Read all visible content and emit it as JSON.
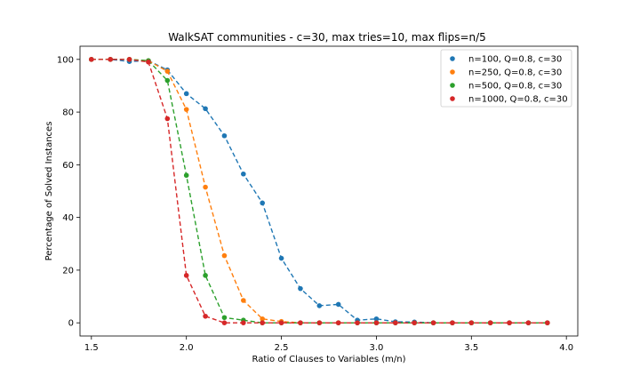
{
  "chart_data": {
    "type": "line",
    "title": "WalkSAT communities - c=30, max tries=10, max flips=n/5",
    "xlabel": "Ratio of Clauses to Variables (m/n)",
    "ylabel": "Percentage of Solved Instances",
    "xlim": [
      1.44,
      4.06
    ],
    "ylim": [
      -5,
      105
    ],
    "xticks": [
      1.5,
      2.0,
      2.5,
      3.0,
      3.5,
      4.0
    ],
    "xtick_labels": [
      "1.5",
      "2.0",
      "2.5",
      "3.0",
      "3.5",
      "4.0"
    ],
    "yticks": [
      0,
      20,
      40,
      60,
      80,
      100
    ],
    "ytick_labels": [
      "0",
      "20",
      "40",
      "60",
      "80",
      "100"
    ],
    "grid": false,
    "legend_position": "top-right",
    "line_style": "dashed",
    "x": [
      1.5,
      1.6,
      1.7,
      1.8,
      1.9,
      2.0,
      2.1,
      2.2,
      2.3,
      2.4,
      2.5,
      2.6,
      2.7,
      2.8,
      2.9,
      3.0,
      3.1,
      3.2,
      3.3,
      3.4,
      3.5,
      3.6,
      3.7,
      3.8,
      3.9
    ],
    "series": [
      {
        "name": "n=100, Q=0.8, c=30",
        "color": "#1f77b4",
        "values": [
          100,
          100,
          99.2,
          99.5,
          96,
          87,
          81.3,
          71,
          56.5,
          45.5,
          24.5,
          13,
          6.5,
          7,
          1,
          1.5,
          0.4,
          0.3,
          0,
          0,
          0,
          0,
          0,
          0,
          0
        ]
      },
      {
        "name": "n=250, Q=0.8, c=30",
        "color": "#ff7f0e",
        "values": [
          100,
          100,
          100,
          99.5,
          95.5,
          81,
          51.5,
          25.5,
          8.5,
          1.5,
          0.5,
          0,
          0,
          0,
          0,
          0,
          0,
          0,
          0,
          0,
          0,
          0,
          0,
          0,
          0
        ]
      },
      {
        "name": "n=500, Q=0.8, c=30",
        "color": "#2ca02c",
        "values": [
          100,
          100,
          100,
          99.5,
          92,
          56,
          18,
          2,
          1,
          0,
          0,
          0,
          0,
          0,
          0,
          0,
          0,
          0,
          0,
          0,
          0,
          0,
          0,
          0,
          0
        ]
      },
      {
        "name": "n=1000, Q=0.8, c=30",
        "color": "#d62728",
        "values": [
          100,
          100,
          100,
          99,
          77.5,
          18,
          2.5,
          0,
          0,
          0,
          0,
          0,
          0,
          0,
          0,
          0,
          0,
          0,
          0,
          0,
          0,
          0,
          0,
          0,
          0
        ]
      }
    ]
  }
}
